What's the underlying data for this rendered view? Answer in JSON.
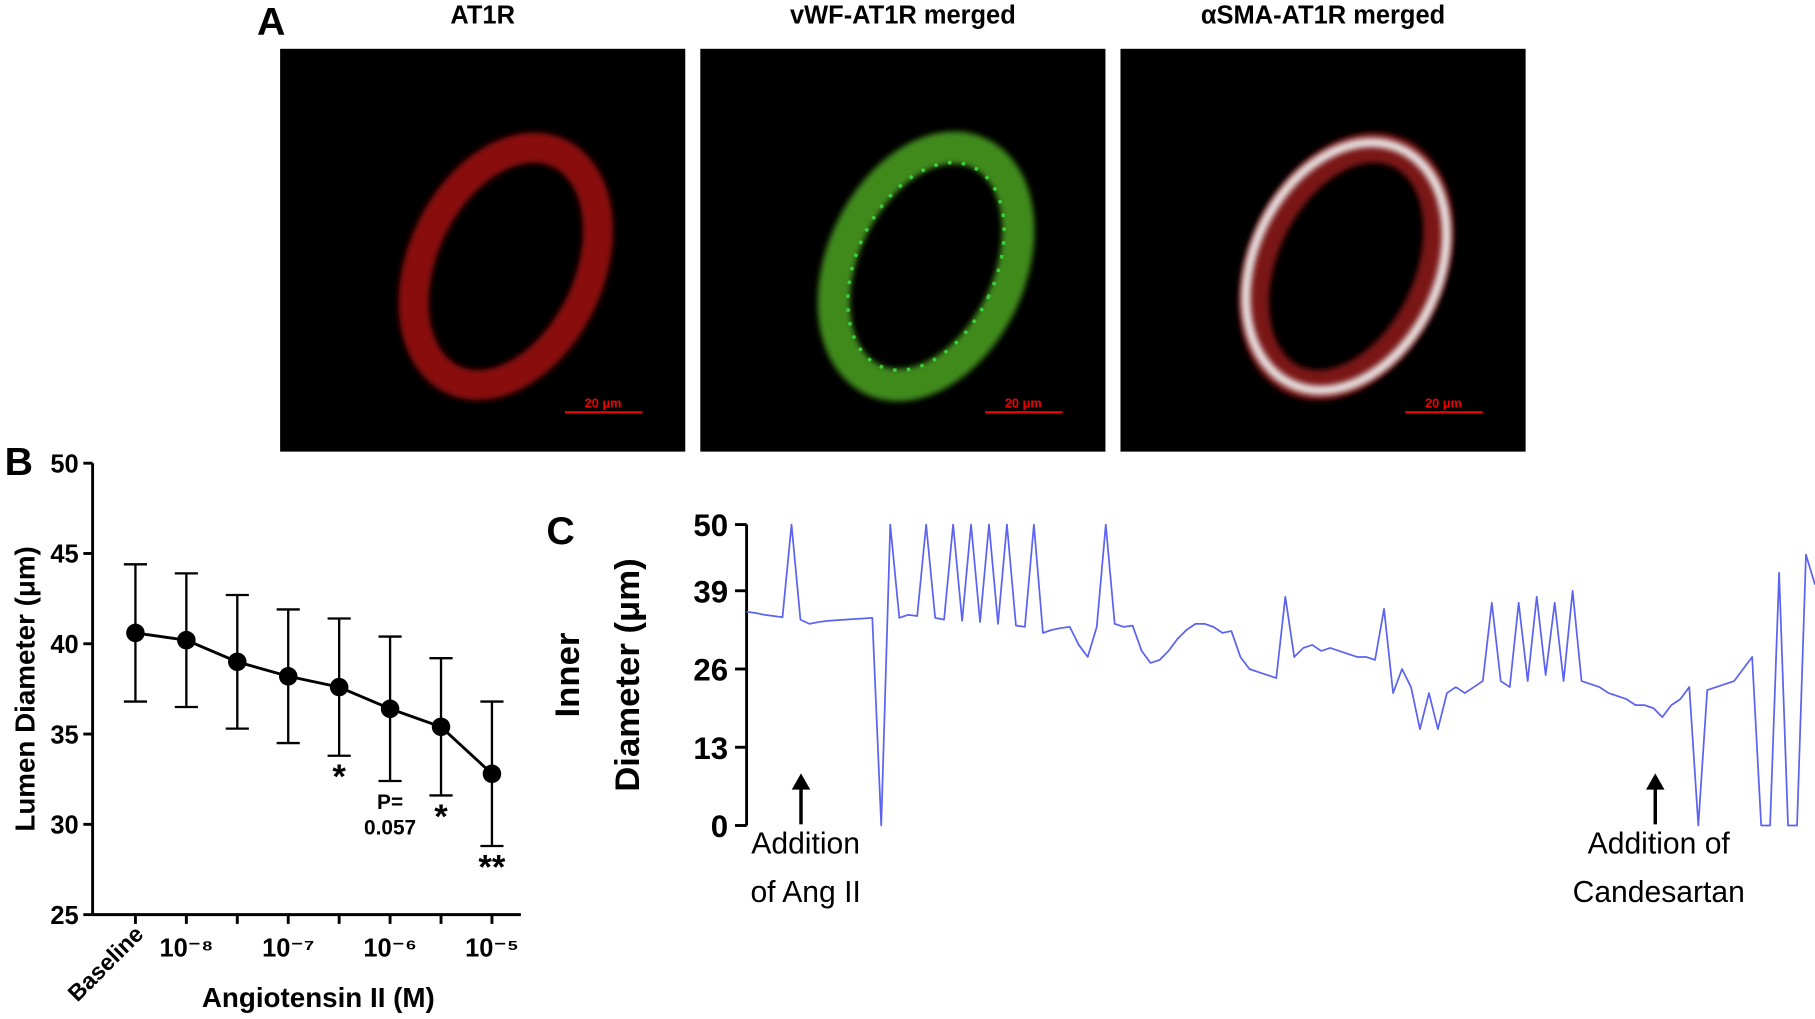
{
  "panel_a": {
    "label": "A",
    "images": [
      {
        "title": "AT1R",
        "scale_bar": "20 μm"
      },
      {
        "title": "vWF-AT1R merged",
        "scale_bar": "20 μm"
      },
      {
        "title": "αSMA-AT1R merged",
        "scale_bar": "20 μm"
      }
    ]
  },
  "chart_data": [
    {
      "type": "line",
      "panel_label": "B",
      "y_label": "Lumen Diameter (μm)",
      "x_label": "Angiotensin II (M)",
      "categories": [
        "Baseline",
        "10⁻⁸",
        null,
        "10⁻⁷",
        null,
        "10⁻⁶",
        null,
        "10⁻⁵"
      ],
      "values": [
        40.6,
        40.2,
        39.0,
        38.2,
        37.6,
        36.4,
        35.4,
        32.8
      ],
      "errors": [
        3.8,
        3.7,
        3.7,
        3.7,
        3.8,
        4.0,
        3.8,
        4.0
      ],
      "significance": [
        null,
        null,
        null,
        null,
        [
          "*"
        ],
        [
          "P=",
          "0.057"
        ],
        [
          "*"
        ],
        [
          "**"
        ]
      ],
      "color": "#000000",
      "ylim": [
        25,
        50
      ],
      "yticks": [
        25,
        30,
        35,
        40,
        45,
        50
      ]
    },
    {
      "type": "trace",
      "panel_label": "C",
      "y_label": [
        "Inner",
        "Diameter (μm)"
      ],
      "color": "#5b63f0",
      "annotations": [
        [
          "Addition",
          "of Ang II"
        ],
        [
          "Addition of",
          "Candesartan"
        ]
      ],
      "ylim": [
        0,
        50
      ],
      "yticks": [
        0,
        13,
        26,
        39,
        50
      ],
      "values": [
        35.5,
        35.3,
        35,
        34.8,
        34.6,
        50,
        34.2,
        33.5,
        33.8,
        34,
        34.1,
        34.2,
        34.3,
        34.4,
        34.5,
        0,
        50,
        34.5,
        35,
        34.8,
        50,
        34.5,
        34.2,
        50,
        34,
        50,
        33.8,
        50,
        33.5,
        50,
        33.2,
        33,
        50,
        32,
        32.5,
        32.8,
        33,
        30,
        28,
        33,
        50,
        33.5,
        33,
        33.2,
        29,
        27,
        27.5,
        29,
        31,
        32.5,
        33.5,
        33.5,
        33,
        32,
        32.3,
        28,
        26,
        25.5,
        25,
        24.5,
        38,
        28,
        29.5,
        30,
        29,
        29.5,
        29,
        28.5,
        28,
        28,
        27.5,
        36,
        22,
        26,
        23,
        16,
        22,
        16,
        22,
        23,
        22,
        23,
        24,
        37,
        24,
        23,
        37,
        24,
        38,
        25,
        37,
        24,
        39,
        24,
        23.5,
        23,
        22,
        21.5,
        21,
        20,
        20,
        19.5,
        18,
        20,
        21,
        23,
        0,
        22.5,
        23,
        23.5,
        24,
        26,
        28,
        0,
        0,
        42,
        0,
        0,
        45,
        40
      ]
    }
  ]
}
